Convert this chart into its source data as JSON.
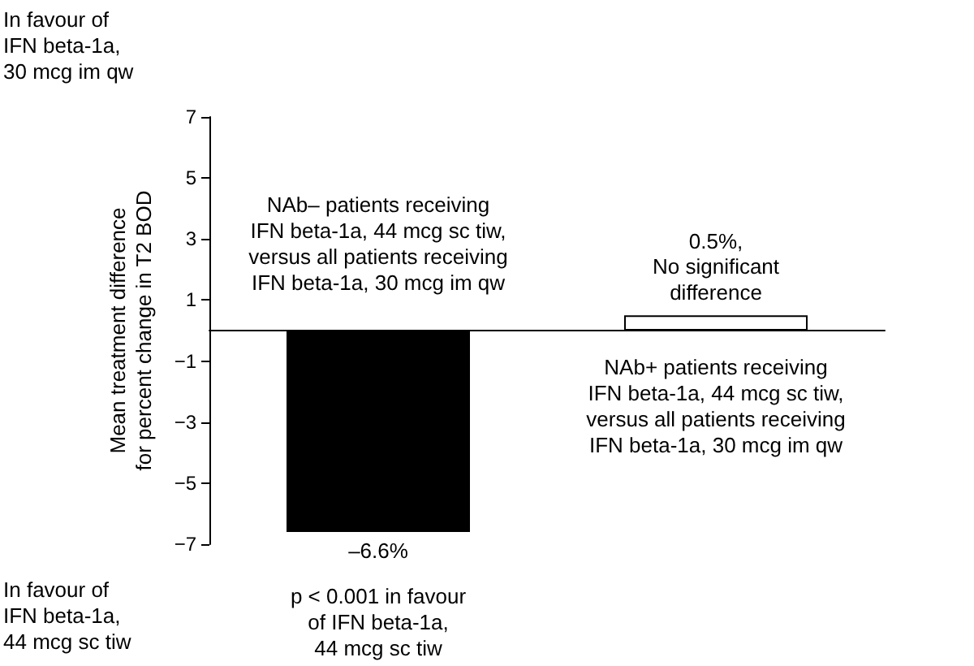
{
  "chart_data": {
    "type": "bar",
    "ylabel": "Mean treatment difference\nfor percent change in T2 BOD",
    "categories": [
      null,
      null
    ],
    "series": [
      {
        "colors": [
          "#000000",
          "#ffffff"
        ],
        "values": [
          -6.6,
          0.5
        ],
        "value_labels": [
          "–6.6%",
          "0.5%,"
        ]
      }
    ],
    "ylim": [
      -7,
      7
    ],
    "yticks": [
      -7,
      -5,
      -3,
      -1,
      1,
      3,
      5,
      7
    ],
    "grid": false,
    "annotations": [
      "In favour of\nIFN beta-1a,\n30 mcg im qw",
      "In favour of\nIFN beta-1a,\n44 mcg sc tiw",
      "NAb– patients receiving\nIFN beta-1a, 44 mcg sc tiw,\nversus all patients receiving\nIFN beta-1a, 30 mcg im qw",
      "No significant\ndifference",
      "NAb+ patients receiving\nIFN beta-1a, 44 mcg sc tiw,\nversus all patients receiving\nIFN beta-1a, 30 mcg im qw",
      "p < 0.001 in favour\nof IFN beta-1a,\n44 mcg sc tiw"
    ]
  }
}
